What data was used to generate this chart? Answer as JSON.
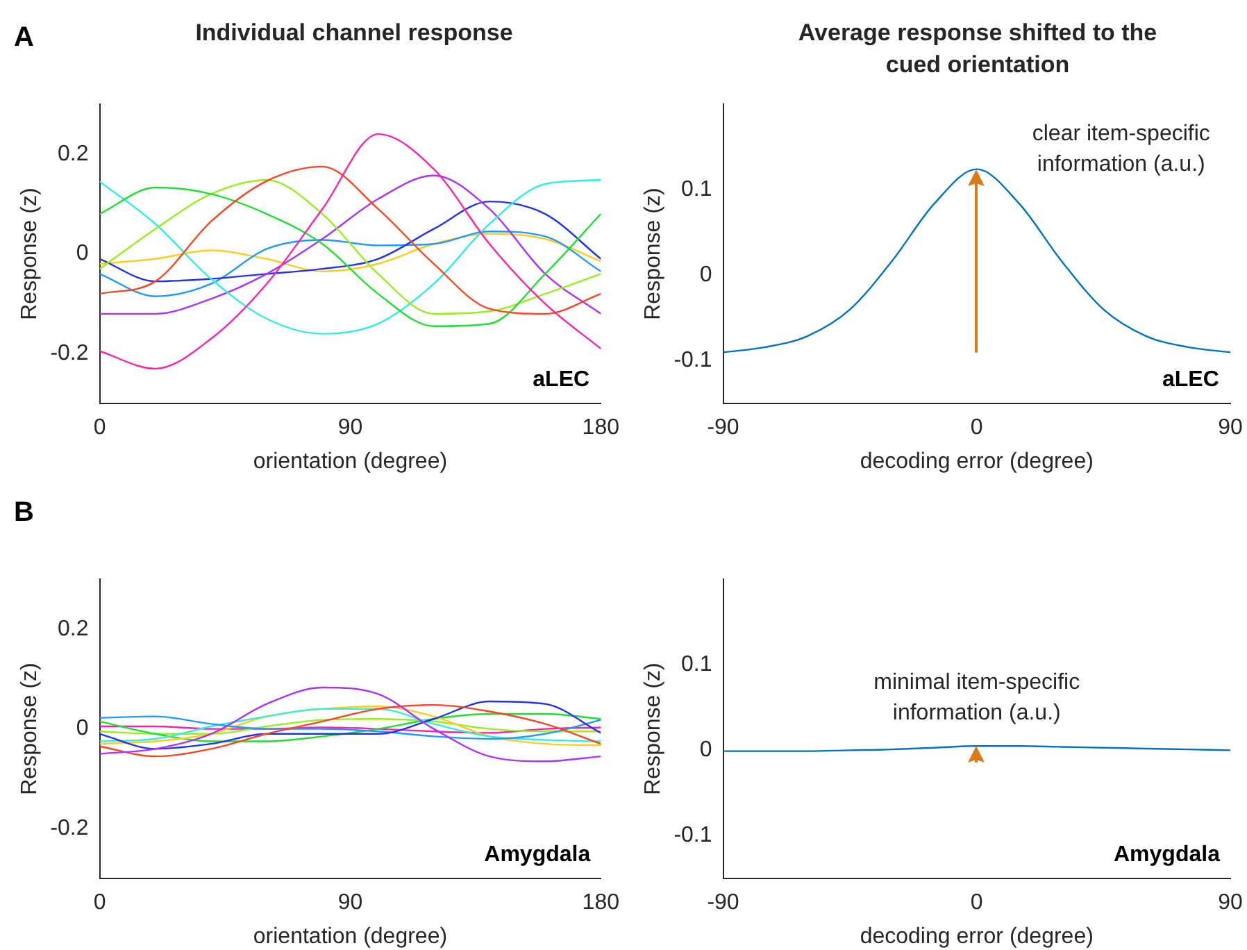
{
  "chart_data": [
    {
      "type": "line",
      "title": "Individual channel response",
      "xlabel": "orientation (degree)",
      "ylabel": "Response (z)",
      "x": [
        0,
        20,
        40,
        60,
        80,
        100,
        120,
        140,
        160,
        180
      ],
      "xlim": [
        0,
        180
      ],
      "xticks": [
        0,
        90,
        180
      ],
      "ylim": [
        -0.3,
        0.3
      ],
      "yticks": [
        -0.2,
        0,
        0.2
      ],
      "annotations": [
        "A",
        "aLEC"
      ],
      "series": [
        {
          "color": "#ff22aa",
          "values": [
            -0.195,
            -0.23,
            -0.17,
            -0.06,
            0.09,
            0.24,
            0.17,
            0.02,
            -0.1,
            -0.19
          ]
        },
        {
          "color": "#ff4422",
          "values": [
            -0.08,
            -0.055,
            0.065,
            0.146,
            0.175,
            0.09,
            -0.02,
            -0.11,
            -0.12,
            -0.08
          ]
        },
        {
          "color": "#22dd33",
          "values": [
            0.08,
            0.133,
            0.12,
            0.08,
            0.02,
            -0.08,
            -0.145,
            -0.14,
            -0.04,
            0.08
          ]
        },
        {
          "color": "#99ee22",
          "values": [
            -0.03,
            0.05,
            0.12,
            0.148,
            0.08,
            -0.04,
            -0.12,
            -0.115,
            -0.08,
            -0.04
          ]
        },
        {
          "color": "#33eedd",
          "values": [
            0.145,
            0.06,
            -0.05,
            -0.13,
            -0.16,
            -0.14,
            -0.06,
            0.06,
            0.14,
            0.148
          ]
        },
        {
          "color": "#aa33ff",
          "values": [
            -0.12,
            -0.12,
            -0.09,
            -0.04,
            0.03,
            0.11,
            0.157,
            0.09,
            -0.04,
            -0.12
          ]
        },
        {
          "color": "#2233ee",
          "values": [
            -0.01,
            -0.055,
            -0.05,
            -0.04,
            -0.03,
            -0.01,
            0.05,
            0.105,
            0.08,
            -0.01
          ]
        },
        {
          "color": "#2299ff",
          "values": [
            -0.04,
            -0.085,
            -0.06,
            0.01,
            0.028,
            0.017,
            0.02,
            0.045,
            0.035,
            -0.035
          ]
        },
        {
          "color": "#ffcc22",
          "values": [
            -0.02,
            -0.01,
            0.007,
            -0.01,
            -0.035,
            -0.02,
            0.02,
            0.04,
            0.03,
            -0.015
          ]
        }
      ]
    },
    {
      "type": "line",
      "title": "Average response shifted to the cued orientation",
      "xlabel": "decoding error (degree)",
      "ylabel": "Response (z)",
      "x": [
        -90,
        -75,
        -60,
        -45,
        -30,
        -15,
        0,
        15,
        30,
        45,
        60,
        75,
        90
      ],
      "xlim": [
        -90,
        90
      ],
      "xticks": [
        -90,
        0,
        90
      ],
      "ylim": [
        -0.15,
        0.2
      ],
      "yticks": [
        -0.1,
        0,
        0.1
      ],
      "annotations": [
        "aLEC",
        {
          "text": "clear item-specific information (a.u.)",
          "x": 0,
          "y": 0.124
        }
      ],
      "series": [
        {
          "color": "#0072bd",
          "values": [
            -0.09,
            -0.084,
            -0.071,
            -0.04,
            0.017,
            0.084,
            0.124,
            0.084,
            0.017,
            -0.04,
            -0.071,
            -0.084,
            -0.09
          ]
        }
      ]
    },
    {
      "type": "line",
      "xlabel": "orientation (degree)",
      "ylabel": "Response (z)",
      "x": [
        0,
        20,
        40,
        60,
        80,
        100,
        120,
        140,
        160,
        180
      ],
      "xlim": [
        0,
        180
      ],
      "xticks": [
        0,
        90,
        180
      ],
      "ylim": [
        -0.3,
        0.3
      ],
      "yticks": [
        -0.2,
        0,
        0.2
      ],
      "annotations": [
        "B",
        "Amygdala"
      ],
      "series": [
        {
          "color": "#aa33ff",
          "values": [
            -0.05,
            -0.04,
            -0.01,
            0.05,
            0.083,
            0.07,
            0.0,
            -0.055,
            -0.065,
            -0.055
          ]
        },
        {
          "color": "#ff4422",
          "values": [
            -0.035,
            -0.055,
            -0.04,
            -0.01,
            0.015,
            0.04,
            0.048,
            0.035,
            0.01,
            -0.03
          ]
        },
        {
          "color": "#2233ee",
          "values": [
            -0.01,
            -0.04,
            -0.03,
            -0.01,
            -0.01,
            -0.01,
            0.02,
            0.055,
            0.05,
            -0.008
          ]
        },
        {
          "color": "#2299ff",
          "values": [
            0.022,
            0.025,
            0.01,
            0.0,
            0.0,
            -0.005,
            -0.015,
            -0.02,
            -0.01,
            0.018
          ]
        },
        {
          "color": "#33eedd",
          "values": [
            -0.025,
            -0.02,
            0.005,
            0.025,
            0.04,
            0.04,
            0.01,
            -0.015,
            -0.022,
            -0.025
          ]
        },
        {
          "color": "#ffcc22",
          "values": [
            -0.03,
            -0.025,
            -0.01,
            0.025,
            0.04,
            0.045,
            0.025,
            -0.015,
            -0.03,
            -0.033
          ]
        },
        {
          "color": "#22dd33",
          "values": [
            0.015,
            -0.01,
            -0.025,
            -0.025,
            -0.015,
            0.0,
            0.02,
            0.03,
            0.03,
            0.02
          ]
        },
        {
          "color": "#99ee22",
          "values": [
            -0.005,
            -0.01,
            -0.01,
            0.005,
            0.018,
            0.02,
            0.015,
            0.0,
            -0.005,
            -0.005
          ]
        },
        {
          "color": "#ff22aa",
          "values": [
            0.005,
            0.005,
            0.0,
            0.0,
            0.003,
            0.0,
            -0.005,
            -0.008,
            0.0,
            0.003
          ]
        }
      ]
    },
    {
      "type": "line",
      "xlabel": "decoding error (degree)",
      "ylabel": "Response (z)",
      "x": [
        -90,
        -75,
        -60,
        -45,
        -30,
        -15,
        0,
        15,
        30,
        45,
        60,
        75,
        90
      ],
      "xlim": [
        -90,
        90
      ],
      "xticks": [
        -90,
        0,
        90
      ],
      "ylim": [
        -0.15,
        0.2
      ],
      "yticks": [
        -0.1,
        0,
        0.1
      ],
      "annotations": [
        "Amygdala",
        {
          "text": "minimal item-specific information (a.u.)",
          "x": 0,
          "y": 0.005
        }
      ],
      "series": [
        {
          "color": "#0072bd",
          "values": [
            -0.001,
            -0.001,
            -0.001,
            0.0,
            0.001,
            0.003,
            0.005,
            0.005,
            0.004,
            0.003,
            0.002,
            0.001,
            0.0
          ]
        }
      ]
    }
  ]
}
